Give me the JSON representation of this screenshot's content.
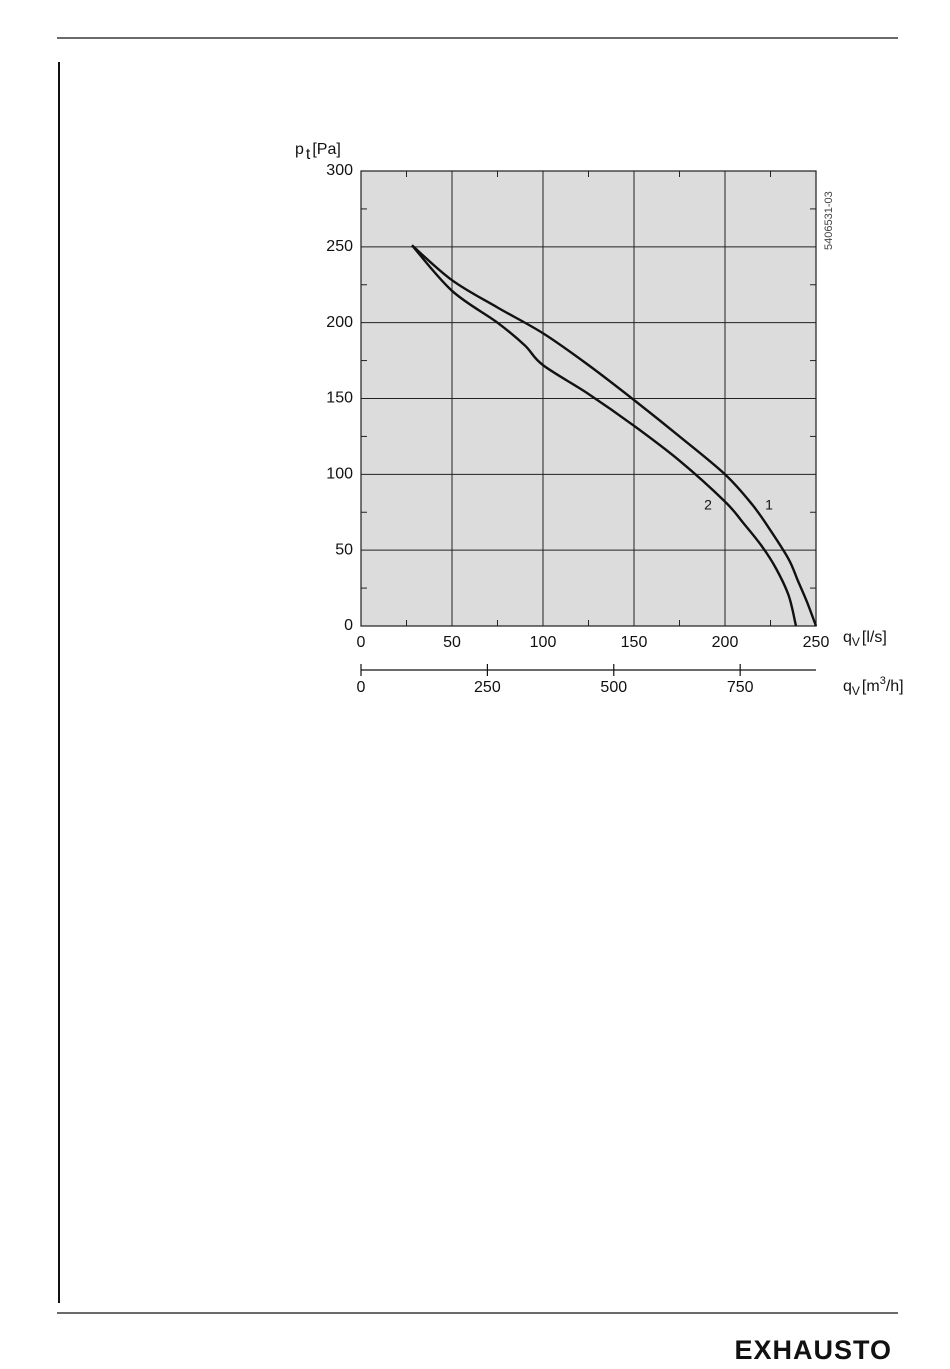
{
  "chart_data": {
    "type": "line",
    "ylabel": {
      "main": "p",
      "sub": "t",
      "unit": "[Pa]"
    },
    "xlabel": {
      "main": "q",
      "sub": "V",
      "unit": "[l/s]"
    },
    "x2label": {
      "main": "q",
      "sub": "V",
      "unit_a": "[m",
      "sup": "3",
      "unit_b": "/h]"
    },
    "code": "5406531-03",
    "brand": "EXHAUSTO",
    "xlim": [
      0,
      250
    ],
    "xticks": [
      0,
      50,
      100,
      150,
      200,
      250
    ],
    "xticks_minor": [
      25,
      75,
      125,
      175,
      225
    ],
    "ylim": [
      0,
      300
    ],
    "yticks": [
      0,
      50,
      100,
      150,
      200,
      250,
      300
    ],
    "yticks_minor": [
      25,
      75,
      125,
      175,
      225,
      275
    ],
    "x2lim": [
      0,
      900
    ],
    "x2ticks": [
      0,
      250,
      500,
      750
    ],
    "grid": true,
    "background": "#dcdcdc",
    "series": [
      {
        "name": "1",
        "color": "#111111",
        "x": [
          28,
          50,
          75,
          100,
          125,
          150,
          175,
          200,
          215,
          225,
          235,
          240,
          245,
          250
        ],
        "values": [
          251,
          228,
          210,
          193,
          172,
          149,
          125,
          100,
          80,
          63,
          44,
          30,
          16,
          0
        ]
      },
      {
        "name": "2",
        "color": "#111111",
        "x": [
          28,
          50,
          75,
          90,
          100,
          125,
          150,
          175,
          200,
          210,
          220,
          228,
          235,
          239
        ],
        "values": [
          251,
          221,
          200,
          185,
          172,
          153,
          132,
          109,
          82,
          68,
          53,
          38,
          20,
          0
        ]
      }
    ]
  }
}
